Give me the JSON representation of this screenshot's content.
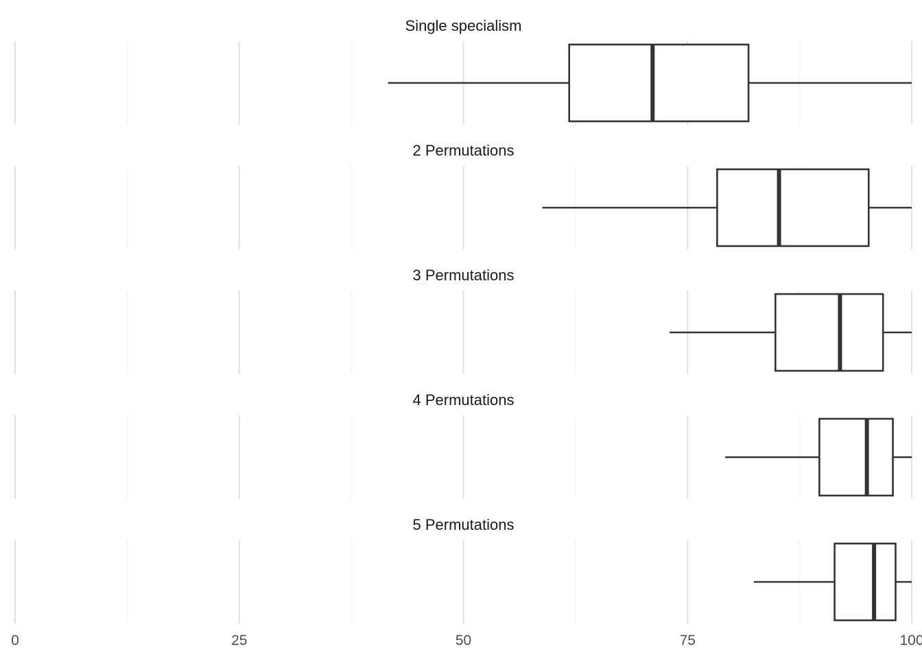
{
  "chart_data": {
    "type": "boxplot",
    "orientation": "horizontal",
    "xlim": [
      0,
      100
    ],
    "x_ticks": [
      0,
      25,
      50,
      75,
      100
    ],
    "x_tick_labels": [
      "0",
      "25",
      "50",
      "75",
      "100"
    ],
    "grid": true,
    "panels": [
      {
        "title": "Single specialism",
        "whisker_low": 41.6,
        "q1": 61.8,
        "median": 71.1,
        "q3": 81.8,
        "whisker_high": 100
      },
      {
        "title": "2 Permutations",
        "whisker_low": 58.8,
        "q1": 78.3,
        "median": 85.2,
        "q3": 95.2,
        "whisker_high": 100
      },
      {
        "title": "3 Permutations",
        "whisker_low": 73.0,
        "q1": 84.8,
        "median": 92.0,
        "q3": 96.8,
        "whisker_high": 100
      },
      {
        "title": "4 Permutations",
        "whisker_low": 79.2,
        "q1": 89.7,
        "median": 95.0,
        "q3": 97.9,
        "whisker_high": 100
      },
      {
        "title": "5 Permutations",
        "whisker_low": 82.4,
        "q1": 91.4,
        "median": 95.8,
        "q3": 98.2,
        "whisker_high": 100
      }
    ]
  }
}
